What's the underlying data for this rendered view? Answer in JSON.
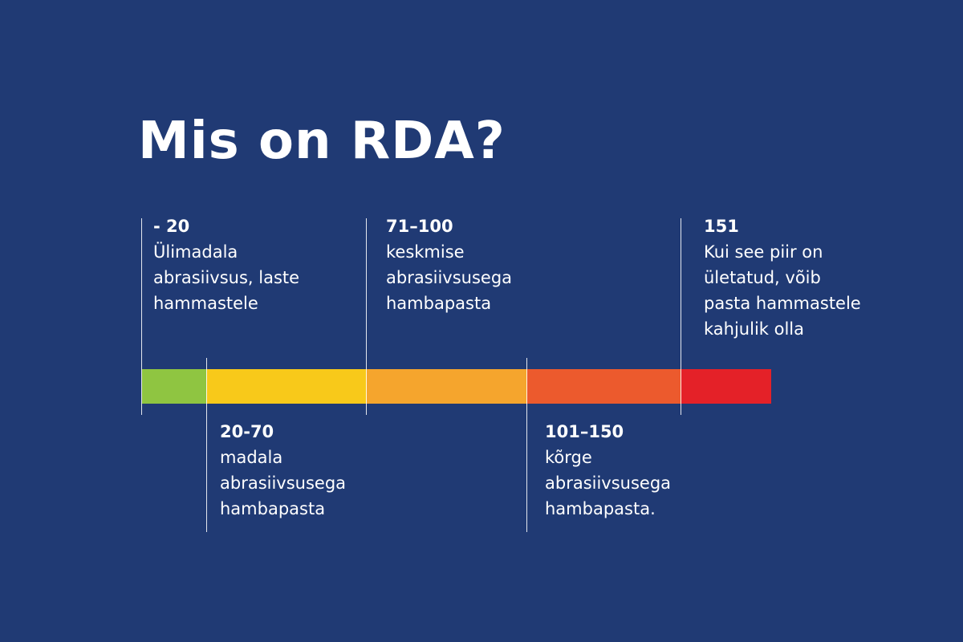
{
  "theme": {
    "background": "#203a74",
    "text": "#ffffff",
    "divider": "#ffffff"
  },
  "title": "Mis on RDA?",
  "scale": {
    "segments": [
      {
        "key": "ulimadala",
        "color": "#8fc541"
      },
      {
        "key": "madala",
        "color": "#f8c91a"
      },
      {
        "key": "keskmise",
        "color": "#f5a52d"
      },
      {
        "key": "korge",
        "color": "#ec5a2d"
      },
      {
        "key": "piir",
        "color": "#e42128"
      }
    ]
  },
  "labels": {
    "top": [
      {
        "range": "- 20",
        "lines": [
          "Ülimadala",
          "abrasiivsus, laste",
          "hammastele"
        ]
      },
      {
        "range": "71–100",
        "lines": [
          "keskmise",
          "abrasiivsusega",
          "hambapasta"
        ]
      },
      {
        "range": "151",
        "lines": [
          "Kui see piir on",
          "ületatud, võib",
          "pasta hammastele",
          "kahjulik olla"
        ]
      }
    ],
    "bottom": [
      {
        "range": "20-70",
        "lines": [
          "madala",
          "abrasiivsusega",
          "hambapasta"
        ]
      },
      {
        "range": "101–150",
        "lines": [
          "kõrge",
          "abrasiivsusega",
          "hambapasta."
        ]
      }
    ]
  }
}
